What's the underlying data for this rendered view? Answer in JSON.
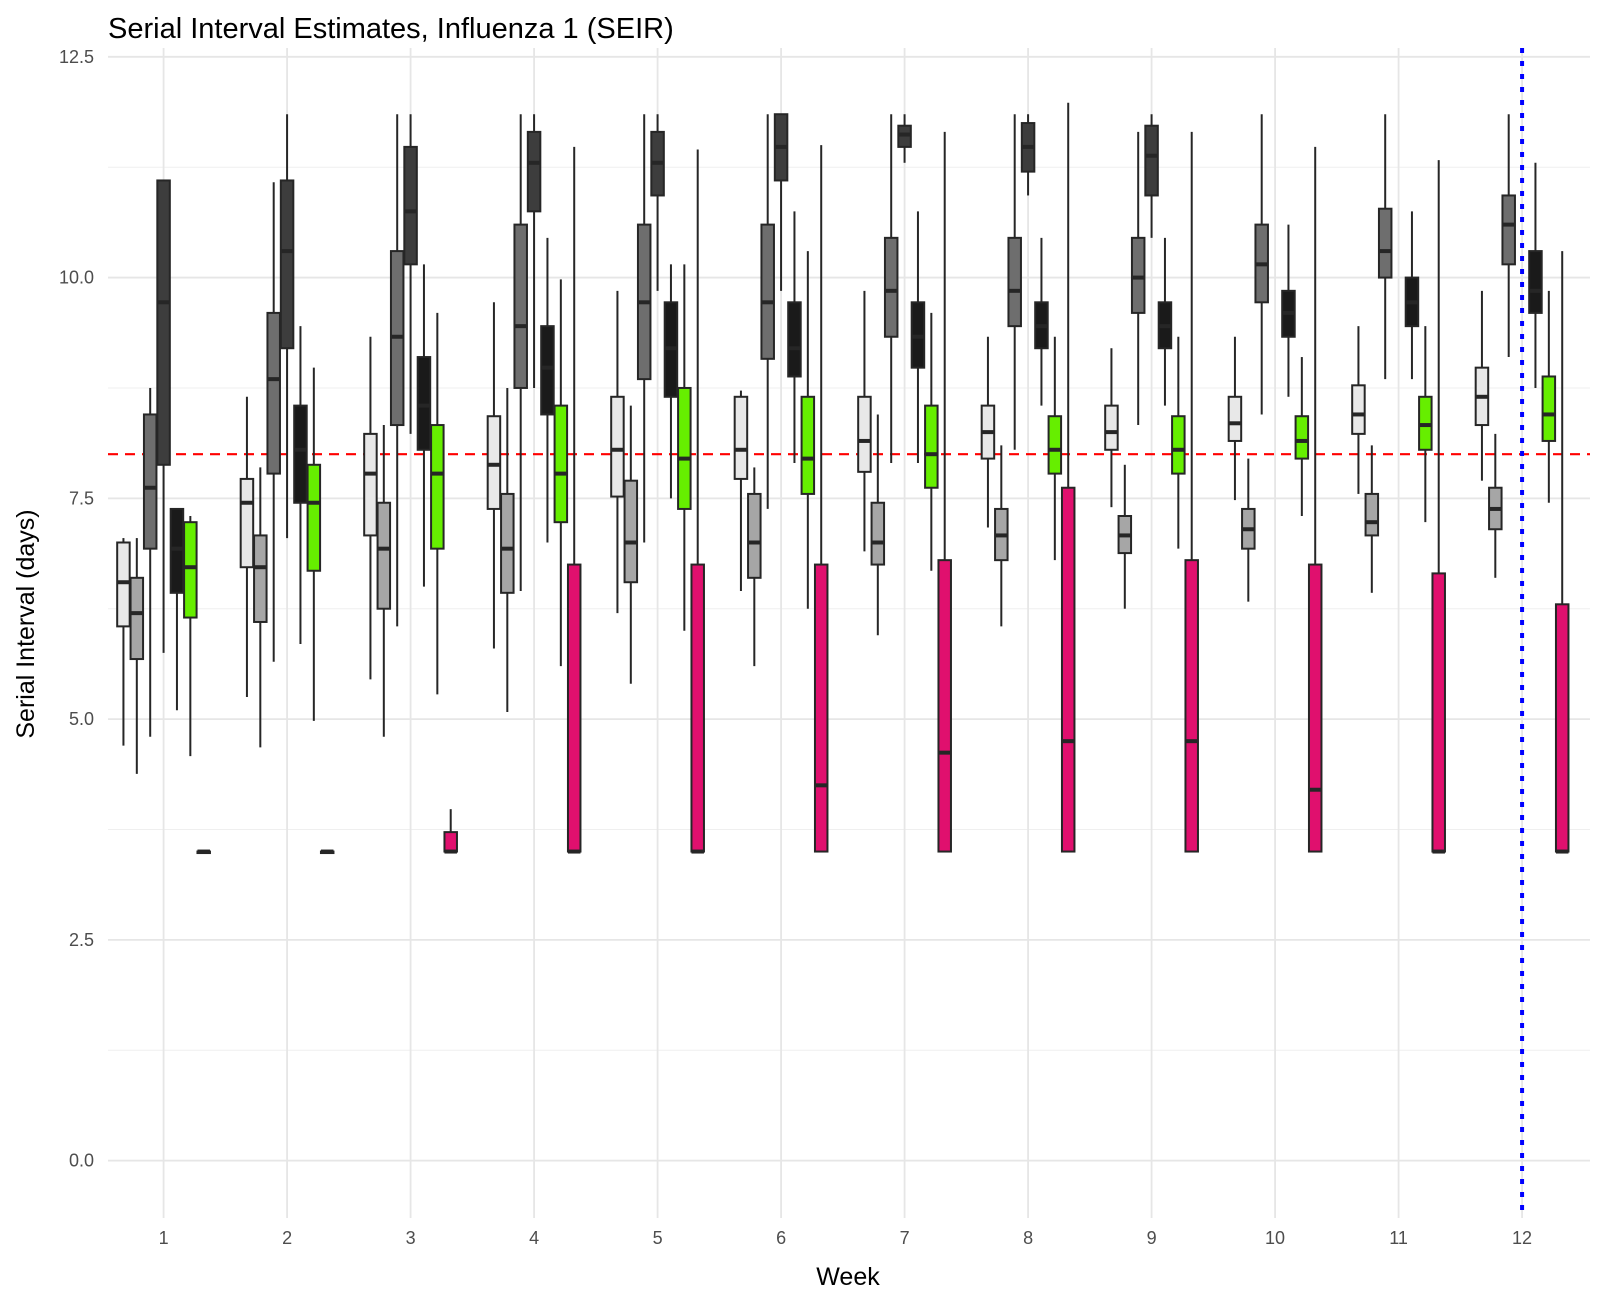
{
  "chart_data": {
    "type": "box",
    "title": "Serial Interval Estimates, Influenza 1 (SEIR)",
    "xlabel": "Week",
    "ylabel": "Serial Interval (days)",
    "xlim": [
      0.55,
      12.55
    ],
    "ylim": [
      -0.65,
      12.6
    ],
    "x_ticks": [
      "1",
      "2",
      "3",
      "4",
      "5",
      "6",
      "7",
      "8",
      "9",
      "10",
      "11",
      "12"
    ],
    "y_ticks": [
      0.0,
      2.5,
      5.0,
      7.5,
      10.0,
      12.5
    ],
    "y_tick_labels": [
      "0.0",
      "2.5",
      "5.0",
      "7.5",
      "10.0",
      "12.5"
    ],
    "grid": true,
    "legend": "none",
    "reference_lines": [
      {
        "orientation": "horizontal",
        "value": 8.0,
        "color": "#ff0000",
        "style": "dashed"
      },
      {
        "orientation": "vertical",
        "value": 12,
        "color": "#0000ff",
        "style": "dotted"
      }
    ],
    "series": [
      {
        "offset": -0.325,
        "fill": "#e8e8e8",
        "boxes": [
          {
            "week": 1,
            "low": 4.7,
            "q1": 6.05,
            "median": 6.55,
            "q3": 7.0,
            "high": 7.05
          },
          {
            "week": 2,
            "low": 5.25,
            "q1": 6.72,
            "median": 7.45,
            "q3": 7.72,
            "high": 8.65
          },
          {
            "week": 3,
            "low": 5.45,
            "q1": 7.08,
            "median": 7.78,
            "q3": 8.23,
            "high": 9.33
          },
          {
            "week": 4,
            "low": 5.8,
            "q1": 7.38,
            "median": 7.88,
            "q3": 8.43,
            "high": 9.72
          },
          {
            "week": 5,
            "low": 6.2,
            "q1": 7.52,
            "median": 8.05,
            "q3": 8.65,
            "high": 9.85
          },
          {
            "week": 6,
            "low": 6.45,
            "q1": 7.72,
            "median": 8.05,
            "q3": 8.65,
            "high": 8.72
          },
          {
            "week": 7,
            "low": 6.9,
            "q1": 7.8,
            "median": 8.15,
            "q3": 8.65,
            "high": 9.85
          },
          {
            "week": 8,
            "low": 7.17,
            "q1": 7.95,
            "median": 8.25,
            "q3": 8.55,
            "high": 9.33
          },
          {
            "week": 9,
            "low": 7.4,
            "q1": 8.05,
            "median": 8.25,
            "q3": 8.55,
            "high": 9.2
          },
          {
            "week": 10,
            "low": 7.48,
            "q1": 8.15,
            "median": 8.35,
            "q3": 8.65,
            "high": 9.33
          },
          {
            "week": 11,
            "low": 7.55,
            "q1": 8.23,
            "median": 8.45,
            "q3": 8.78,
            "high": 9.45
          },
          {
            "week": 12,
            "low": 7.7,
            "q1": 8.33,
            "median": 8.65,
            "q3": 8.98,
            "high": 9.85
          }
        ]
      },
      {
        "offset": -0.2167,
        "fill": "#a6a6a6",
        "boxes": [
          {
            "week": 1,
            "low": 4.38,
            "q1": 5.68,
            "median": 6.2,
            "q3": 6.6,
            "high": 7.05
          },
          {
            "week": 2,
            "low": 4.68,
            "q1": 6.1,
            "median": 6.72,
            "q3": 7.08,
            "high": 7.85
          },
          {
            "week": 3,
            "low": 4.8,
            "q1": 6.25,
            "median": 6.93,
            "q3": 7.45,
            "high": 8.33
          },
          {
            "week": 4,
            "low": 5.08,
            "q1": 6.43,
            "median": 6.93,
            "q3": 7.55,
            "high": 8.75
          },
          {
            "week": 5,
            "low": 5.4,
            "q1": 6.55,
            "median": 7.0,
            "q3": 7.7,
            "high": 8.55
          },
          {
            "week": 6,
            "low": 5.6,
            "q1": 6.6,
            "median": 7.0,
            "q3": 7.55,
            "high": 7.85
          },
          {
            "week": 7,
            "low": 5.95,
            "q1": 6.75,
            "median": 7.0,
            "q3": 7.45,
            "high": 8.45
          },
          {
            "week": 8,
            "low": 6.05,
            "q1": 6.8,
            "median": 7.08,
            "q3": 7.38,
            "high": 8.1
          },
          {
            "week": 9,
            "low": 6.25,
            "q1": 6.88,
            "median": 7.08,
            "q3": 7.3,
            "high": 7.88
          },
          {
            "week": 10,
            "low": 6.33,
            "q1": 6.93,
            "median": 7.15,
            "q3": 7.38,
            "high": 7.95
          },
          {
            "week": 11,
            "low": 6.43,
            "q1": 7.08,
            "median": 7.23,
            "q3": 7.55,
            "high": 8.1
          },
          {
            "week": 12,
            "low": 6.6,
            "q1": 7.15,
            "median": 7.38,
            "q3": 7.62,
            "high": 8.23
          }
        ]
      },
      {
        "offset": -0.1083,
        "fill": "#6e6e6e",
        "boxes": [
          {
            "week": 1,
            "low": 4.8,
            "q1": 6.93,
            "median": 7.62,
            "q3": 8.45,
            "high": 8.75
          },
          {
            "week": 2,
            "low": 5.65,
            "q1": 7.78,
            "median": 8.85,
            "q3": 9.6,
            "high": 11.08
          },
          {
            "week": 3,
            "low": 6.05,
            "q1": 8.33,
            "median": 9.33,
            "q3": 10.3,
            "high": 11.85
          },
          {
            "week": 4,
            "low": 6.45,
            "q1": 8.75,
            "median": 9.45,
            "q3": 10.6,
            "high": 11.85
          },
          {
            "week": 5,
            "low": 7.0,
            "q1": 8.85,
            "median": 9.72,
            "q3": 10.6,
            "high": 11.85
          },
          {
            "week": 6,
            "low": 7.38,
            "q1": 9.08,
            "median": 9.72,
            "q3": 10.6,
            "high": 11.85
          },
          {
            "week": 7,
            "low": 7.9,
            "q1": 9.33,
            "median": 9.85,
            "q3": 10.45,
            "high": 11.85
          },
          {
            "week": 8,
            "low": 8.05,
            "q1": 9.45,
            "median": 9.85,
            "q3": 10.45,
            "high": 11.85
          },
          {
            "week": 9,
            "low": 8.33,
            "q1": 9.6,
            "median": 10.0,
            "q3": 10.45,
            "high": 11.65
          },
          {
            "week": 10,
            "low": 8.45,
            "q1": 9.72,
            "median": 10.15,
            "q3": 10.6,
            "high": 11.85
          },
          {
            "week": 11,
            "low": 8.85,
            "q1": 10.0,
            "median": 10.3,
            "q3": 10.78,
            "high": 11.85
          },
          {
            "week": 12,
            "low": 9.1,
            "q1": 10.15,
            "median": 10.6,
            "q3": 10.93,
            "high": 11.85
          }
        ]
      },
      {
        "offset": 0.0,
        "fill": "#3d3d3d",
        "boxes": [
          {
            "week": 1,
            "low": 5.75,
            "q1": 7.88,
            "median": 9.72,
            "q3": 11.1,
            "high": 11.1
          },
          {
            "week": 2,
            "low": 7.05,
            "q1": 9.2,
            "median": 10.3,
            "q3": 11.1,
            "high": 11.85
          },
          {
            "week": 3,
            "low": 8.23,
            "q1": 10.15,
            "median": 10.75,
            "q3": 11.48,
            "high": 11.85
          },
          {
            "week": 4,
            "low": 8.75,
            "q1": 10.75,
            "median": 11.3,
            "q3": 11.65,
            "high": 11.85
          },
          {
            "week": 5,
            "low": 9.85,
            "q1": 10.93,
            "median": 11.3,
            "q3": 11.65,
            "high": 11.85
          },
          {
            "week": 6,
            "low": 9.85,
            "q1": 11.1,
            "median": 11.48,
            "q3": 11.85,
            "high": 11.85
          },
          {
            "week": 7,
            "low": 11.3,
            "q1": 11.48,
            "median": 11.62,
            "q3": 11.72,
            "high": 11.85
          },
          {
            "week": 8,
            "low": 10.93,
            "q1": 11.2,
            "median": 11.48,
            "q3": 11.75,
            "high": 11.85
          },
          {
            "week": 9,
            "low": 10.45,
            "q1": 10.93,
            "median": 11.38,
            "q3": 11.72,
            "high": 11.85
          },
          {
            "week": 10,
            "low": null,
            "q1": null,
            "median": null,
            "q3": null,
            "high": null
          },
          {
            "week": 11,
            "low": null,
            "q1": null,
            "median": null,
            "q3": null,
            "high": null
          },
          {
            "week": 12,
            "low": null,
            "q1": null,
            "median": null,
            "q3": null,
            "high": null
          }
        ]
      },
      {
        "offset": 0.1083,
        "fill": "#1a1a1a",
        "boxes": [
          {
            "week": 1,
            "low": 5.1,
            "q1": 6.43,
            "median": 6.93,
            "q3": 7.38,
            "high": 7.38
          },
          {
            "week": 2,
            "low": 5.85,
            "q1": 7.45,
            "median": 8.05,
            "q3": 8.55,
            "high": 9.45
          },
          {
            "week": 3,
            "low": 6.5,
            "q1": 8.05,
            "median": 8.55,
            "q3": 9.1,
            "high": 10.15
          },
          {
            "week": 4,
            "low": 7.0,
            "q1": 8.45,
            "median": 8.98,
            "q3": 9.45,
            "high": 10.45
          },
          {
            "week": 5,
            "low": 7.5,
            "q1": 8.65,
            "median": 9.2,
            "q3": 9.72,
            "high": 10.15
          },
          {
            "week": 6,
            "low": 7.9,
            "q1": 8.88,
            "median": 9.2,
            "q3": 9.72,
            "high": 10.75
          },
          {
            "week": 7,
            "low": 7.9,
            "q1": 8.98,
            "median": 9.33,
            "q3": 9.72,
            "high": 10.75
          },
          {
            "week": 8,
            "low": 8.55,
            "q1": 9.2,
            "median": 9.45,
            "q3": 9.72,
            "high": 10.45
          },
          {
            "week": 9,
            "low": 8.55,
            "q1": 9.2,
            "median": 9.45,
            "q3": 9.72,
            "high": 10.45
          },
          {
            "week": 10,
            "low": 8.65,
            "q1": 9.33,
            "median": 9.6,
            "q3": 9.85,
            "high": 10.6
          },
          {
            "week": 11,
            "low": 8.85,
            "q1": 9.45,
            "median": 9.72,
            "q3": 10.0,
            "high": 10.75
          },
          {
            "week": 12,
            "low": 8.75,
            "q1": 9.6,
            "median": 9.85,
            "q3": 10.3,
            "high": 11.3
          }
        ]
      },
      {
        "offset": 0.2167,
        "fill": "#66ee00",
        "boxes": [
          {
            "week": 1,
            "low": 4.58,
            "q1": 6.15,
            "median": 6.72,
            "q3": 7.23,
            "high": 7.3
          },
          {
            "week": 2,
            "low": 4.98,
            "q1": 6.68,
            "median": 7.45,
            "q3": 7.88,
            "high": 8.98
          },
          {
            "week": 3,
            "low": 5.28,
            "q1": 6.93,
            "median": 7.78,
            "q3": 8.33,
            "high": 9.6
          },
          {
            "week": 4,
            "low": 5.6,
            "q1": 7.23,
            "median": 7.78,
            "q3": 8.55,
            "high": 9.98
          },
          {
            "week": 5,
            "low": 6.0,
            "q1": 7.38,
            "median": 7.95,
            "q3": 8.75,
            "high": 10.15
          },
          {
            "week": 6,
            "low": 6.25,
            "q1": 7.55,
            "median": 7.95,
            "q3": 8.65,
            "high": 10.3
          },
          {
            "week": 7,
            "low": 6.68,
            "q1": 7.62,
            "median": 8.0,
            "q3": 8.55,
            "high": 9.6
          },
          {
            "week": 8,
            "low": 6.8,
            "q1": 7.78,
            "median": 8.05,
            "q3": 8.43,
            "high": 9.33
          },
          {
            "week": 9,
            "low": 6.93,
            "q1": 7.78,
            "median": 8.05,
            "q3": 8.43,
            "high": 9.33
          },
          {
            "week": 10,
            "low": 7.3,
            "q1": 7.95,
            "median": 8.15,
            "q3": 8.43,
            "high": 9.1
          },
          {
            "week": 11,
            "low": 7.23,
            "q1": 8.05,
            "median": 8.33,
            "q3": 8.65,
            "high": 9.45
          },
          {
            "week": 12,
            "low": 7.45,
            "q1": 8.15,
            "median": 8.45,
            "q3": 8.88,
            "high": 9.85
          }
        ]
      },
      {
        "offset": 0.325,
        "fill": "#e0106e",
        "boxes": [
          {
            "week": 1,
            "low": 3.5,
            "q1": 3.5,
            "median": 3.5,
            "q3": 3.5,
            "high": 3.5
          },
          {
            "week": 2,
            "low": 3.5,
            "q1": 3.5,
            "median": 3.5,
            "q3": 3.5,
            "high": 3.5
          },
          {
            "week": 3,
            "low": 3.5,
            "q1": 3.5,
            "median": 3.5,
            "q3": 3.72,
            "high": 3.98
          },
          {
            "week": 4,
            "low": 3.5,
            "q1": 3.5,
            "median": 3.5,
            "q3": 6.75,
            "high": 11.48
          },
          {
            "week": 5,
            "low": 3.5,
            "q1": 3.5,
            "median": 3.5,
            "q3": 6.75,
            "high": 11.45
          },
          {
            "week": 6,
            "low": 3.5,
            "q1": 3.5,
            "median": 4.25,
            "q3": 6.75,
            "high": 11.5
          },
          {
            "week": 7,
            "low": 3.5,
            "q1": 3.5,
            "median": 4.62,
            "q3": 6.8,
            "high": 11.65
          },
          {
            "week": 8,
            "low": 3.5,
            "q1": 3.5,
            "median": 4.75,
            "q3": 7.62,
            "high": 11.98
          },
          {
            "week": 9,
            "low": 3.5,
            "q1": 3.5,
            "median": 4.75,
            "q3": 6.8,
            "high": 11.65
          },
          {
            "week": 10,
            "low": 3.5,
            "q1": 3.5,
            "median": 4.2,
            "q3": 6.75,
            "high": 11.48
          },
          {
            "week": 11,
            "low": 3.5,
            "q1": 3.5,
            "median": 3.5,
            "q3": 6.65,
            "high": 11.33
          },
          {
            "week": 12,
            "low": 3.5,
            "q1": 3.5,
            "median": 3.5,
            "q3": 6.3,
            "high": 10.3
          }
        ]
      }
    ]
  }
}
